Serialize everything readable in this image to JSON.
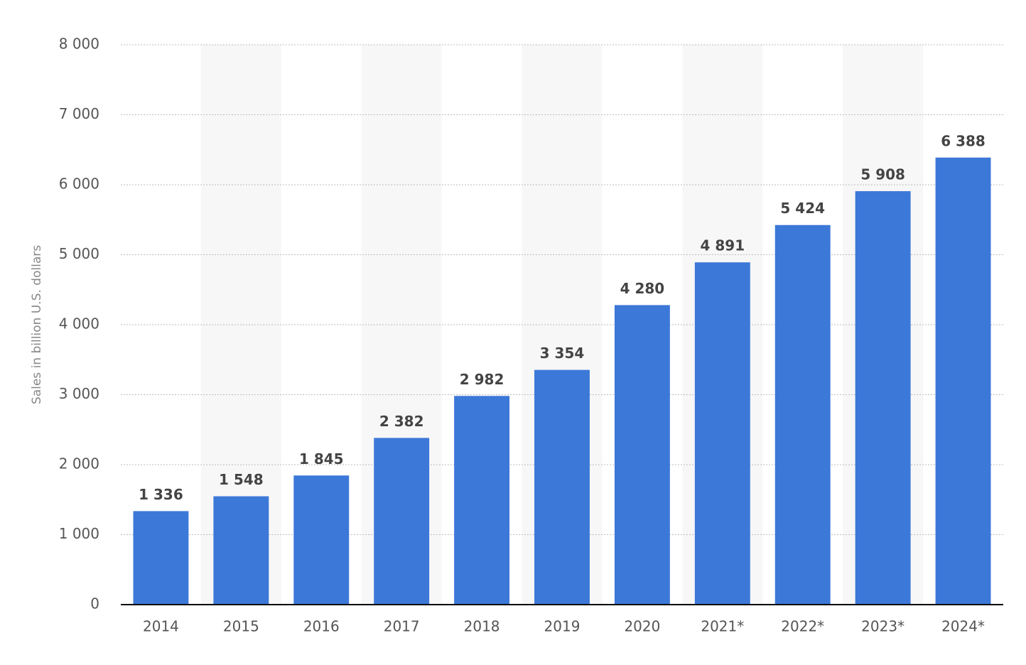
{
  "chart_data": {
    "type": "bar",
    "y_label": "Sales in billion U.S. dollars",
    "categories": [
      "2014",
      "2015",
      "2016",
      "2017",
      "2018",
      "2019",
      "2020",
      "2021*",
      "2022*",
      "2023*",
      "2024*"
    ],
    "values": [
      1336,
      1548,
      1845,
      2382,
      2982,
      3354,
      4280,
      4891,
      5424,
      5908,
      6388
    ],
    "value_labels": [
      "1 336",
      "1 548",
      "1 845",
      "2 382",
      "2 982",
      "3 354",
      "4 280",
      "4 891",
      "5 424",
      "5 908",
      "6 388"
    ],
    "color": "#3c78d8",
    "ylim": [
      0,
      8000
    ],
    "yticks": [
      0,
      {
        "value": 1000,
        "label": "1 000"
      },
      {
        "value": 2000,
        "label": "2 000"
      },
      {
        "value": 3000,
        "label": "3 000"
      },
      {
        "value": 4000,
        "label": "4 000"
      },
      {
        "value": 5000,
        "label": "5 000"
      },
      {
        "value": 6000,
        "label": "6 000"
      },
      {
        "value": 7000,
        "label": "7 000"
      },
      {
        "value": 8000,
        "label": "8 000"
      }
    ],
    "grid": true
  }
}
